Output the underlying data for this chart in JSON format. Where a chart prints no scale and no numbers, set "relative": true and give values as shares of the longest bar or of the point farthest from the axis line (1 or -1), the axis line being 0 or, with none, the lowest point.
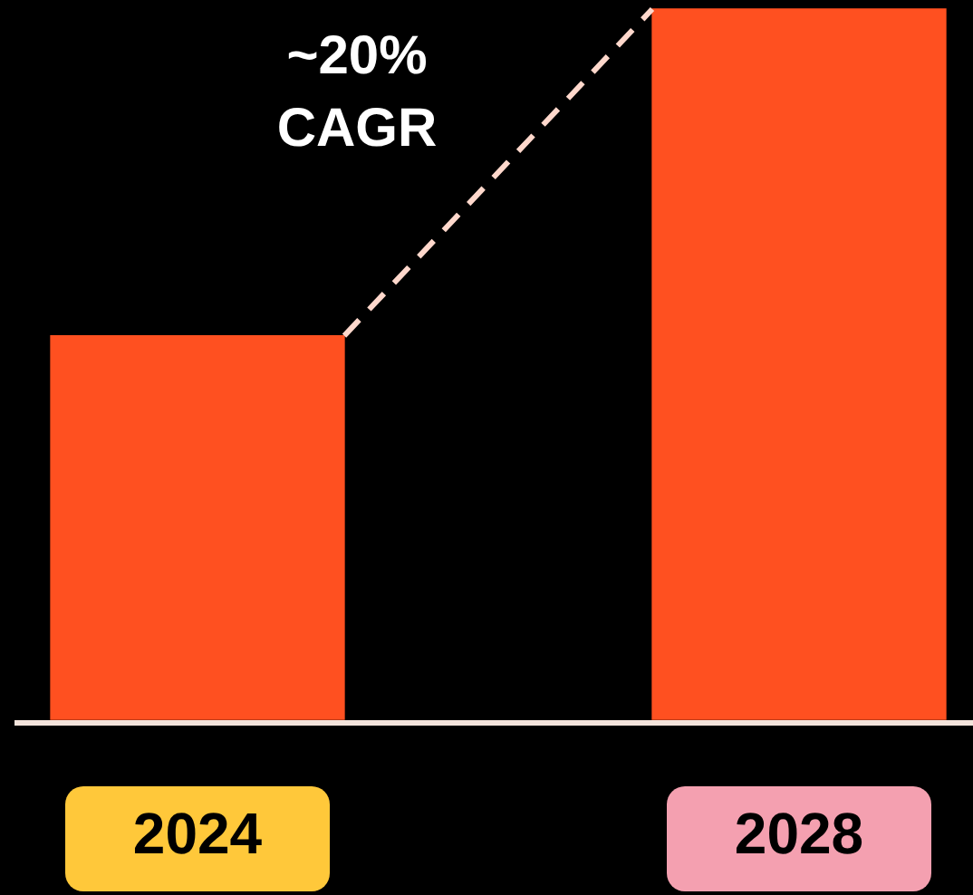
{
  "chart_data": {
    "type": "bar",
    "categories": [
      "2024",
      "2028"
    ],
    "relative": true,
    "series": [
      {
        "color": "#ff5020",
        "values": [
          0.54,
          1
        ]
      }
    ],
    "annotations": [
      "~20% CAGR"
    ]
  }
}
